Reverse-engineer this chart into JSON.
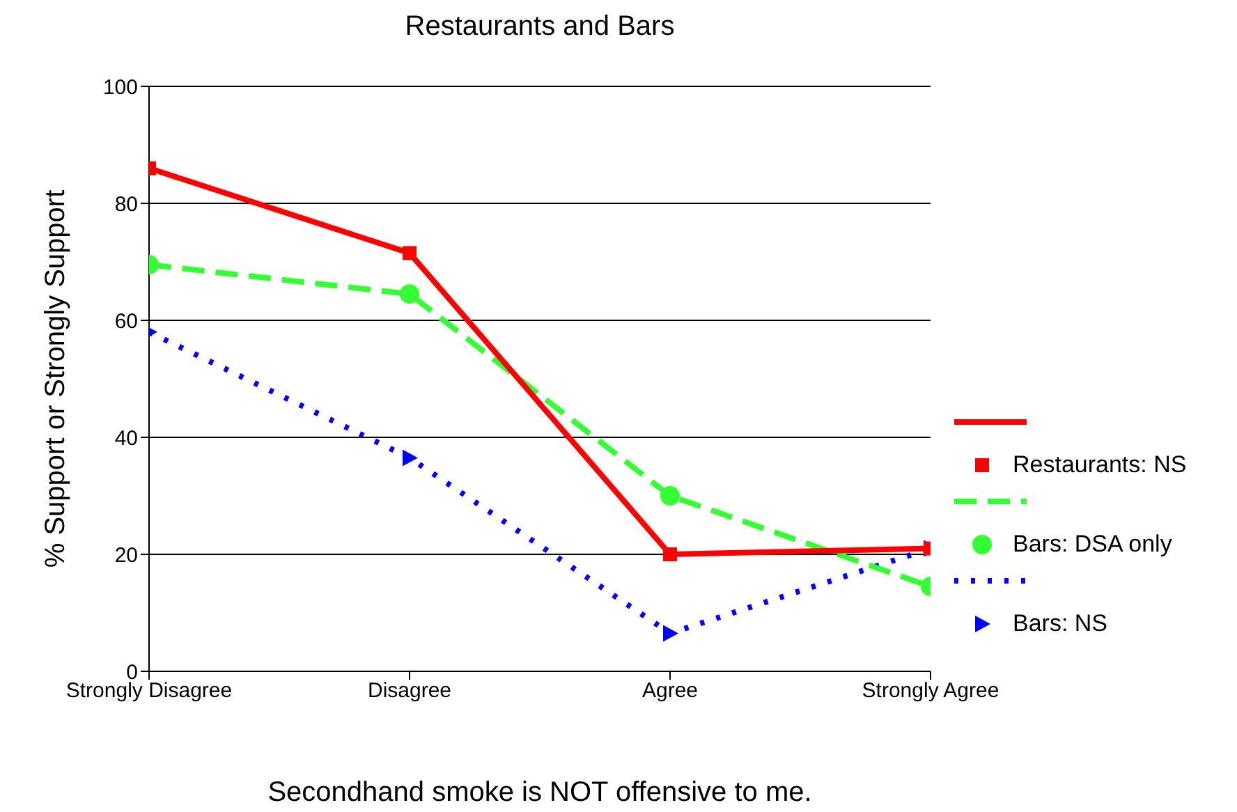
{
  "chart_data": {
    "type": "line",
    "title": "Restaurants and Bars",
    "xlabel": "Secondhand smoke is NOT offensive to me.",
    "ylabel": "% Support or Strongly Support",
    "categories": [
      "Strongly Disagree",
      "Disagree",
      "Agree",
      "Strongly Agree"
    ],
    "series": [
      {
        "name": "Restaurants: NS",
        "color": "#ff0000",
        "values": [
          86,
          71.5,
          20,
          21
        ],
        "marker": "square",
        "line_style": "solid"
      },
      {
        "name": "Bars: DSA only",
        "color": "#33ff33",
        "values": [
          69.5,
          64.5,
          30,
          14.5
        ],
        "marker": "circle",
        "line_style": "dashed"
      },
      {
        "name": "Bars: NS",
        "color": "#0000ff",
        "values": [
          58,
          36.5,
          6.5,
          21
        ],
        "marker": "triangle",
        "line_style": "dotted"
      }
    ],
    "ylim": [
      0,
      100
    ],
    "yticks": [
      0,
      20,
      40,
      60,
      80,
      100
    ],
    "grid": "y",
    "legend": "right"
  }
}
